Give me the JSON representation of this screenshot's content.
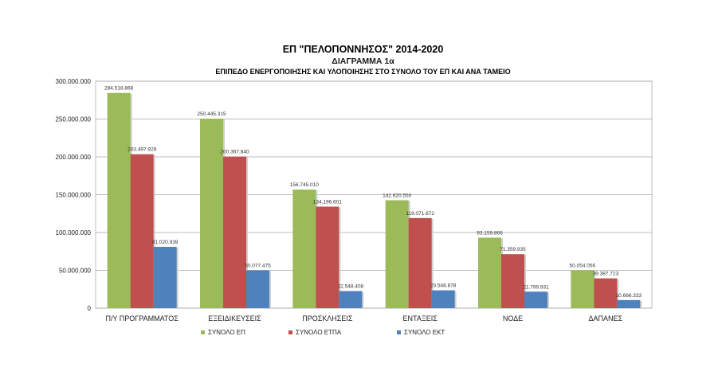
{
  "chart_data": {
    "type": "bar",
    "title": "ΕΠ \"ΠΕΛΟΠΟΝΝΗΣΟΣ\" 2014-2020",
    "subtitle": "ΔΙΑΓΡΑΜΜΑ 1α",
    "subtitle2": "ΕΠΙΠΕΔΟ ΕΝΕΡΓΟΠΟΙΗΣΗΣ ΚΑΙ ΥΛΟΠΟΙΗΣΗΣ ΣΤΟ ΣΥΝΟΛΟ ΤΟΥ ΕΠ ΚΑΙ ΑΝΑ ΤΑΜΕΙΟ",
    "categories": [
      "Π/Υ ΠΡΟΓΡΑΜΜΑΤΟΣ",
      "ΕΞΕΙΔΙΚΕΥΣΕΙΣ",
      "ΠΡΟΣΚΛΗΣΕΙΣ",
      "ΕΝΤΑΞΕΙΣ",
      "ΝΟΔΕ",
      "ΔΑΠΑΝΕΣ"
    ],
    "series": [
      {
        "name": "ΣΥΝΟΛΟ ΕΠ",
        "color": "#9bbb59",
        "values": [
          284518868,
          250445315,
          156745010,
          142620550,
          93159866,
          50054056
        ],
        "labels": [
          "284.518.868",
          "250.445.315",
          "156.745.010",
          "142.620.550",
          "93.159.866",
          "50.054.056"
        ]
      },
      {
        "name": "ΣΥΝΟΛΟ ΕΤΠΑ",
        "color": "#c0504d",
        "values": [
          203497929,
          200367840,
          134196601,
          119071672,
          71359935,
          39387723
        ],
        "labels": [
          "203.497.929",
          "200.367.840",
          "134.196.601",
          "119.071.672",
          "71.359.935",
          "39.387.723"
        ]
      },
      {
        "name": "ΣΥΝΟΛΟ ΕΚΤ",
        "color": "#4f81bd",
        "values": [
          81020939,
          50077475,
          22548408,
          23548878,
          21799931,
          10666333
        ],
        "labels": [
          "81.020.939",
          "50.077.475",
          "22.548.408",
          "23.548.878",
          "21.799.931",
          "10.666.333"
        ]
      }
    ],
    "ylim": [
      0,
      300000000
    ],
    "yticks": [
      0,
      50000000,
      100000000,
      150000000,
      200000000,
      250000000,
      300000000
    ],
    "ytick_labels": [
      "0",
      "50.000.000",
      "100.000.000",
      "150.000.000",
      "200.000.000",
      "250.000.000",
      "300.000.000"
    ],
    "grid": true,
    "legend": "bottom"
  }
}
